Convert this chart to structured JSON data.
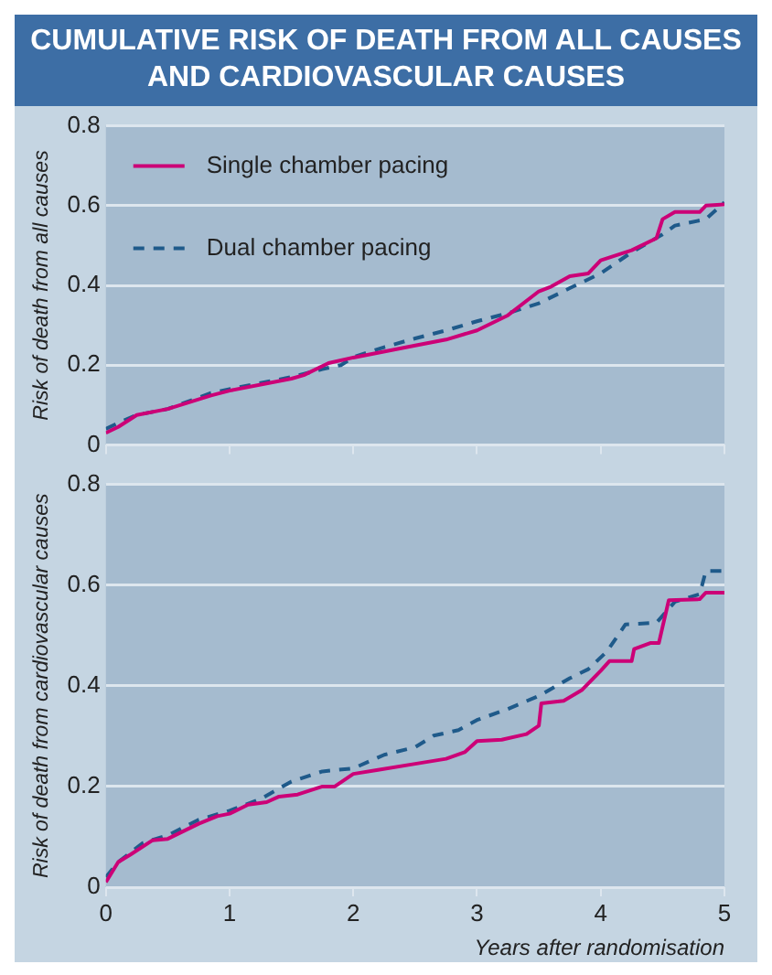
{
  "chart_data": [
    {
      "type": "line",
      "title": "CUMULATIVE RISK OF DEATH FROM ALL CAUSES AND CARDIOVASCULAR CAUSES",
      "ylabel": "Risk of death from all causes",
      "xlim": [
        0,
        5
      ],
      "xticks": [
        0,
        1,
        2,
        3,
        4,
        5
      ],
      "ylim": [
        0,
        0.8
      ],
      "yticks": [
        0,
        0.2,
        0.4,
        0.6,
        0.8
      ],
      "grid": "y",
      "legend": "top left",
      "tick_labels": "y",
      "marker": "none",
      "series": [
        {
          "name": "Single chamber pacing",
          "color": "#cc0077",
          "line_style": "solid",
          "x": [
            0,
            0.1,
            0.25,
            0.5,
            0.85,
            1,
            1.5,
            1.6,
            1.8,
            2,
            2.5,
            2.75,
            3,
            3.25,
            3.5,
            3.6,
            3.75,
            3.9,
            4,
            4.25,
            4.45,
            4.5,
            4.6,
            4.8,
            4.85,
            5
          ],
          "values": [
            0.03,
            0.045,
            0.075,
            0.09,
            0.124,
            0.136,
            0.166,
            0.175,
            0.205,
            0.219,
            0.249,
            0.264,
            0.287,
            0.325,
            0.385,
            0.397,
            0.423,
            0.43,
            0.463,
            0.488,
            0.518,
            0.566,
            0.584,
            0.584,
            0.6,
            0.603
          ]
        },
        {
          "name": "Dual chamber pacing",
          "color": "#1f5a8a",
          "line_style": "dashed",
          "x": [
            0,
            0.1,
            0.25,
            0.5,
            0.85,
            1,
            1.5,
            1.75,
            1.9,
            2,
            2.25,
            2.5,
            2.75,
            3,
            3.25,
            3.5,
            3.75,
            4,
            4.25,
            4.5,
            4.6,
            4.85,
            5
          ],
          "values": [
            0.04,
            0.055,
            0.075,
            0.09,
            0.13,
            0.14,
            0.17,
            0.19,
            0.2,
            0.22,
            0.245,
            0.267,
            0.287,
            0.31,
            0.33,
            0.355,
            0.393,
            0.43,
            0.483,
            0.528,
            0.55,
            0.566,
            0.608
          ]
        }
      ]
    },
    {
      "type": "line",
      "ylabel": "Risk of death from cardiovascular causes",
      "xlabel": "Years after randomisation",
      "xlim": [
        0,
        5
      ],
      "xticks": [
        0,
        1,
        2,
        3,
        4,
        5
      ],
      "ylim": [
        0,
        0.8
      ],
      "yticks": [
        0,
        0.2,
        0.4,
        0.6,
        0.8
      ],
      "grid": "y",
      "marker": "none",
      "series": [
        {
          "color": "#cc0077",
          "line_style": "solid",
          "x": [
            0,
            0.1,
            0.2,
            0.375,
            0.5,
            0.75,
            0.9,
            1,
            1.15,
            1.3,
            1.4,
            1.55,
            1.75,
            1.85,
            2,
            2.2,
            2.5,
            2.75,
            2.9,
            3,
            3.2,
            3.4,
            3.5,
            3.52,
            3.7,
            3.85,
            4,
            4.07,
            4.25,
            4.27,
            4.4,
            4.47,
            4.5,
            4.55,
            4.8,
            4.85,
            5
          ],
          "values": [
            0.01,
            0.05,
            0.065,
            0.093,
            0.096,
            0.126,
            0.141,
            0.146,
            0.164,
            0.169,
            0.18,
            0.184,
            0.2,
            0.2,
            0.225,
            0.233,
            0.245,
            0.255,
            0.268,
            0.29,
            0.293,
            0.304,
            0.321,
            0.365,
            0.37,
            0.392,
            0.43,
            0.449,
            0.449,
            0.473,
            0.485,
            0.485,
            0.517,
            0.57,
            0.572,
            0.585,
            0.585
          ]
        },
        {
          "color": "#1f5a8a",
          "line_style": "dashed",
          "x": [
            0,
            0.1,
            0.3,
            0.5,
            0.75,
            1,
            1.25,
            1.5,
            1.75,
            2,
            2.25,
            2.5,
            2.65,
            2.85,
            3,
            3.25,
            3.5,
            3.75,
            3.9,
            4.05,
            4.2,
            4.45,
            4.6,
            4.8,
            4.85,
            5
          ],
          "values": [
            0.02,
            0.05,
            0.088,
            0.103,
            0.134,
            0.152,
            0.175,
            0.21,
            0.23,
            0.236,
            0.263,
            0.278,
            0.301,
            0.312,
            0.332,
            0.354,
            0.38,
            0.415,
            0.433,
            0.468,
            0.522,
            0.525,
            0.567,
            0.582,
            0.628,
            0.628
          ]
        }
      ]
    }
  ]
}
